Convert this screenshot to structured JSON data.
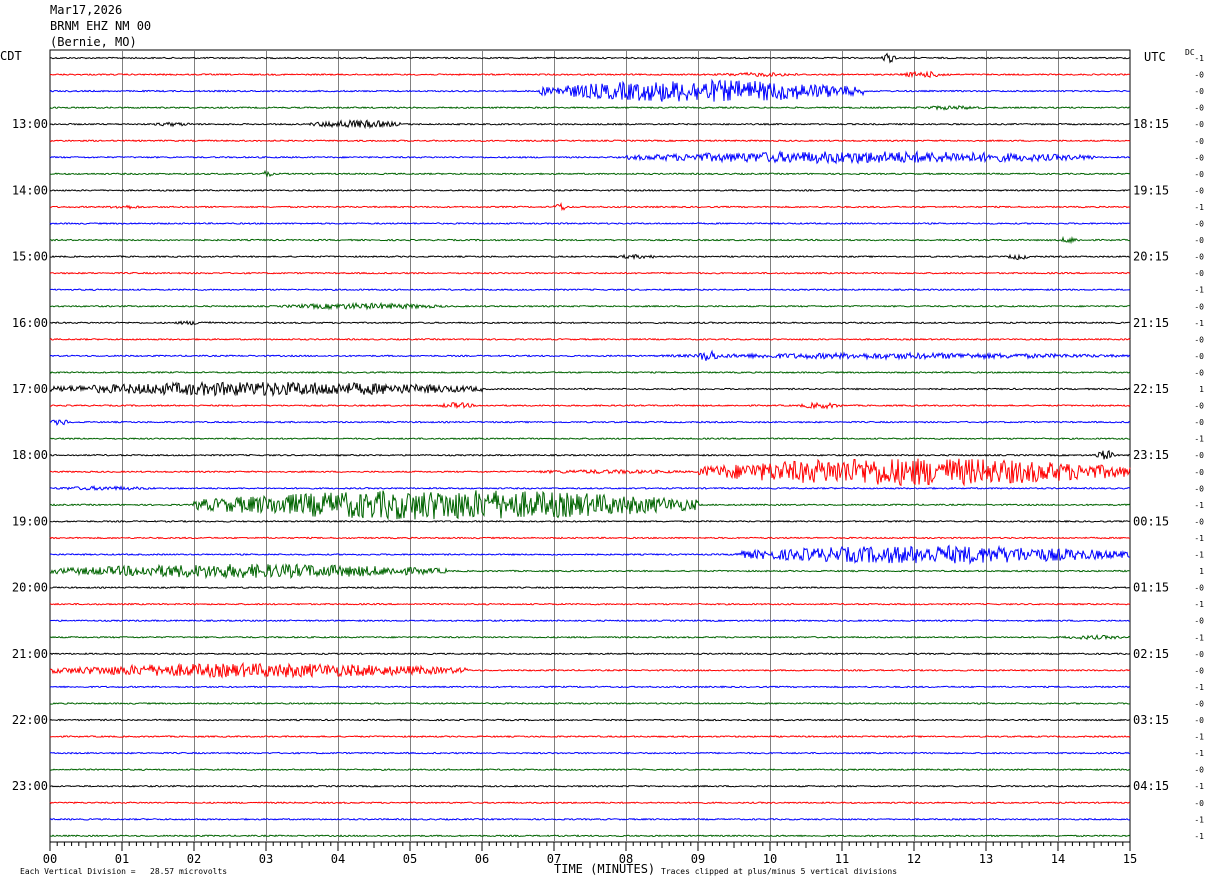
{
  "header": {
    "date": "Mar17,2026",
    "station": "BRNM EHZ NM 00",
    "location": "(Bernie, MO)"
  },
  "left_zone": "CDT",
  "right_zone": "UTC",
  "dc_label": "DC",
  "footer": {
    "scale_note": "Each Vertical Division =   28.57 microvolts",
    "xlabel": "TIME (MINUTES)",
    "clip_note": "Traces clipped at plus/minus 5 vertical divisions"
  },
  "colors": {
    "black": "#000000",
    "red": "#ff0000",
    "blue": "#0000ff",
    "green": "#006400",
    "grid": "#808080"
  },
  "chart_data": {
    "type": "line",
    "title": "",
    "xlabel": "TIME (MINUTES)",
    "xlim": [
      0,
      15
    ],
    "x_ticks": [
      "00",
      "01",
      "02",
      "03",
      "04",
      "05",
      "06",
      "07",
      "08",
      "09",
      "10",
      "11",
      "12",
      "13",
      "14",
      "15"
    ],
    "rows": 48,
    "row_minutes": 15,
    "trace_colors": [
      "black",
      "red",
      "blue",
      "green"
    ],
    "left_hour_labels": [
      {
        "row": 4,
        "text": "13:00"
      },
      {
        "row": 8,
        "text": "14:00"
      },
      {
        "row": 12,
        "text": "15:00"
      },
      {
        "row": 16,
        "text": "16:00"
      },
      {
        "row": 20,
        "text": "17:00"
      },
      {
        "row": 24,
        "text": "18:00"
      },
      {
        "row": 28,
        "text": "19:00"
      },
      {
        "row": 32,
        "text": "20:00"
      },
      {
        "row": 36,
        "text": "21:00"
      },
      {
        "row": 40,
        "text": "22:00"
      },
      {
        "row": 44,
        "text": "23:00"
      }
    ],
    "right_hour_labels": [
      {
        "row": 4,
        "text": "18:15"
      },
      {
        "row": 8,
        "text": "19:15"
      },
      {
        "row": 12,
        "text": "20:15"
      },
      {
        "row": 16,
        "text": "21:15"
      },
      {
        "row": 20,
        "text": "22:15"
      },
      {
        "row": 24,
        "text": "23:15"
      },
      {
        "row": 28,
        "text": "00:15"
      },
      {
        "row": 32,
        "text": "01:15"
      },
      {
        "row": 36,
        "text": "02:15"
      },
      {
        "row": 40,
        "text": "03:15"
      },
      {
        "row": 44,
        "text": "04:15"
      }
    ],
    "dc_offsets": [
      "-1",
      "-0",
      "-0",
      "-0",
      "-0",
      "-0",
      "-0",
      "-0",
      "-0",
      "-1",
      "-0",
      "-0",
      "-0",
      "-0",
      "-1",
      "-0",
      "-1",
      "-0",
      "-0",
      "-0",
      "1",
      "-0",
      "-0",
      "-1",
      "-0",
      "-0",
      "-0",
      "-1",
      "-0",
      "-1",
      "-1",
      "1",
      "-0",
      "-1",
      "-0",
      "-1",
      "-0",
      "-0",
      "-1",
      "-0",
      "-0",
      "-1",
      "-1",
      "-0",
      "-1",
      "-0",
      "-1",
      "-1"
    ],
    "events": [
      {
        "row": 0,
        "start": 11.55,
        "end": 11.75,
        "amp": 5
      },
      {
        "row": 1,
        "start": 9.2,
        "end": 10.5,
        "amp": 2
      },
      {
        "row": 1,
        "start": 11.8,
        "end": 12.5,
        "amp": 3
      },
      {
        "row": 2,
        "start": 6.8,
        "end": 11.3,
        "amp": 11
      },
      {
        "row": 3,
        "start": 12.0,
        "end": 13.0,
        "amp": 2
      },
      {
        "row": 4,
        "start": 1.4,
        "end": 2.0,
        "amp": 2
      },
      {
        "row": 4,
        "start": 3.6,
        "end": 4.9,
        "amp": 4
      },
      {
        "row": 6,
        "start": 8.0,
        "end": 14.5,
        "amp": 6
      },
      {
        "row": 7,
        "start": 2.9,
        "end": 3.1,
        "amp": 3
      },
      {
        "row": 9,
        "start": 0.8,
        "end": 1.3,
        "amp": 2
      },
      {
        "row": 9,
        "start": 7.0,
        "end": 7.2,
        "amp": 4
      },
      {
        "row": 11,
        "start": 14.0,
        "end": 14.3,
        "amp": 3
      },
      {
        "row": 12,
        "start": 7.8,
        "end": 8.5,
        "amp": 2
      },
      {
        "row": 12,
        "start": 13.3,
        "end": 13.6,
        "amp": 3
      },
      {
        "row": 15,
        "start": 3.2,
        "end": 5.5,
        "amp": 3
      },
      {
        "row": 16,
        "start": 1.7,
        "end": 2.3,
        "amp": 2
      },
      {
        "row": 18,
        "start": 8.5,
        "end": 15,
        "amp": 3
      },
      {
        "row": 18,
        "start": 9.0,
        "end": 9.3,
        "amp": 6
      },
      {
        "row": 20,
        "start": 0,
        "end": 6.0,
        "amp": 7
      },
      {
        "row": 21,
        "start": 5.4,
        "end": 5.9,
        "amp": 3
      },
      {
        "row": 21,
        "start": 10.4,
        "end": 11.0,
        "amp": 3
      },
      {
        "row": 22,
        "start": 0,
        "end": 0.3,
        "amp": 3
      },
      {
        "row": 24,
        "start": 14.5,
        "end": 14.8,
        "amp": 5
      },
      {
        "row": 25,
        "start": 6.5,
        "end": 9.0,
        "amp": 2
      },
      {
        "row": 25,
        "start": 9.0,
        "end": 15,
        "amp": 14
      },
      {
        "row": 26,
        "start": 0,
        "end": 1.5,
        "amp": 2
      },
      {
        "row": 27,
        "start": 2.0,
        "end": 9.0,
        "amp": 15
      },
      {
        "row": 30,
        "start": 9.5,
        "end": 15,
        "amp": 9
      },
      {
        "row": 31,
        "start": 0,
        "end": 5.5,
        "amp": 7
      },
      {
        "row": 35,
        "start": 14.0,
        "end": 15,
        "amp": 2
      },
      {
        "row": 37,
        "start": 0,
        "end": 5.8,
        "amp": 7
      }
    ]
  }
}
